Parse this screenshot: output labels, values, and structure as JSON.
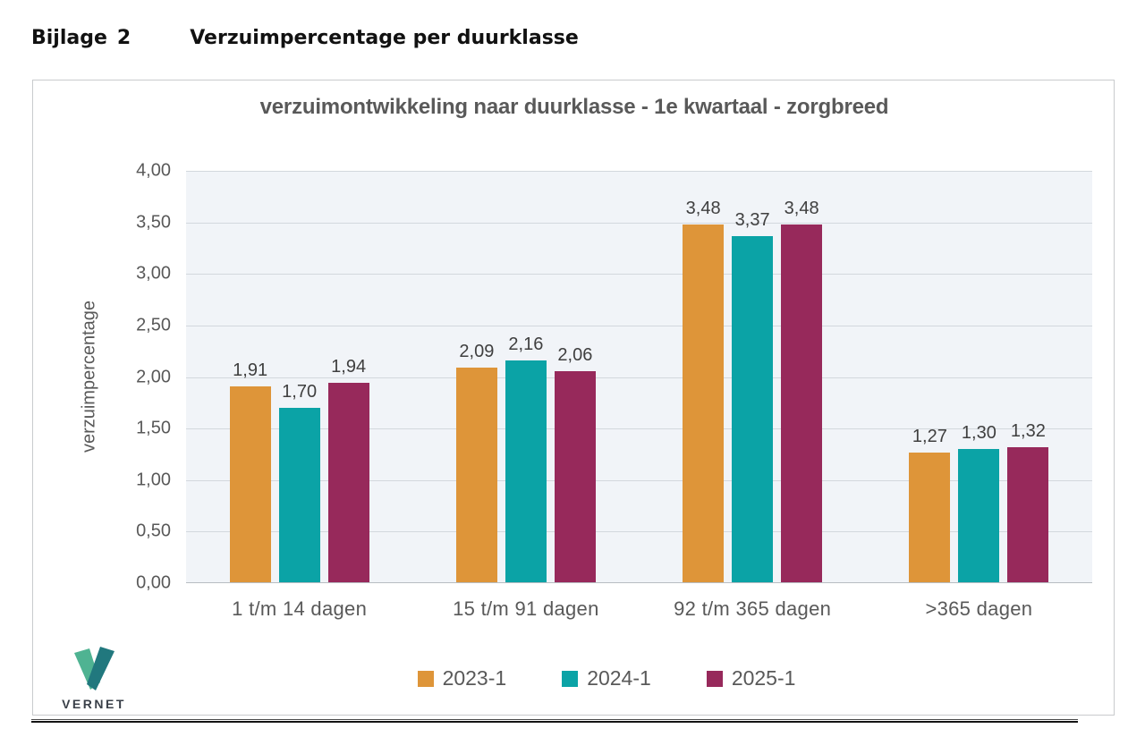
{
  "page": {
    "heading_label": "Bijlage",
    "heading_number": "2",
    "heading_title": "Verzuimpercentage per duurklasse"
  },
  "logo": {
    "text": "VERNET"
  },
  "logo_colors": {
    "left_arm": "#4fb392",
    "right_arm": "#21787e",
    "text": "#3a4049"
  },
  "colors": {
    "plot_background": "#f1f4f8",
    "gridline": "#d3d8dd",
    "zero_line": "#b7bdc2",
    "axis_text": "#595959",
    "value_label_text": "#3f3f3f"
  },
  "chart_data": {
    "type": "bar",
    "title": "verzuimontwikkeling naar duurklasse - 1e kwartaal - zorgbreed",
    "xlabel": "",
    "ylabel": "verzuimpercentage",
    "categories": [
      "1 t/m 14 dagen",
      "15 t/m 91 dagen",
      "92 t/m 365 dagen",
      ">365 dagen"
    ],
    "series": [
      {
        "name": "2023-1",
        "color": "#de9539",
        "values": [
          1.91,
          2.09,
          3.48,
          1.27
        ]
      },
      {
        "name": "2024-1",
        "color": "#0ba3a6",
        "values": [
          1.7,
          2.16,
          3.37,
          1.3
        ]
      },
      {
        "name": "2025-1",
        "color": "#97295b",
        "values": [
          1.94,
          2.06,
          3.48,
          1.32
        ]
      }
    ],
    "ylim": [
      0,
      4
    ],
    "ytick_step": 0.5,
    "decimal_separator": ",",
    "grid": true,
    "legend_position": "bottom"
  }
}
